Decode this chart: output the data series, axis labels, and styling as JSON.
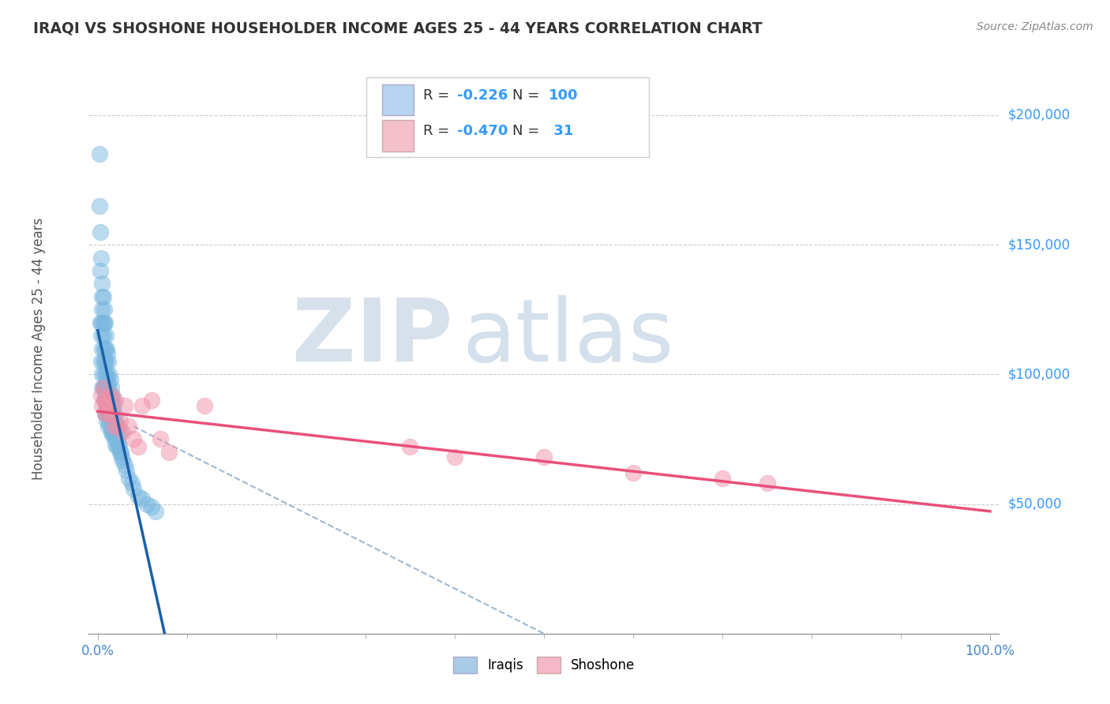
{
  "title": "IRAQI VS SHOSHONE HOUSEHOLDER INCOME AGES 25 - 44 YEARS CORRELATION CHART",
  "source_text": "Source: ZipAtlas.com",
  "ylabel": "Householder Income Ages 25 - 44 years",
  "ytick_labels": [
    "$50,000",
    "$100,000",
    "$150,000",
    "$200,000"
  ],
  "ytick_values": [
    50000,
    100000,
    150000,
    200000
  ],
  "ylim": [
    0,
    220000
  ],
  "xlim": [
    0.0,
    1.0
  ],
  "legend_bottom": [
    "Iraqis",
    "Shoshone"
  ],
  "legend_bottom_colors": [
    "#a8cce8",
    "#f4b8c8"
  ],
  "iraqis_color": "#7ab8e0",
  "shoshone_color": "#f090a8",
  "trendline_iraqis_color": "#1a5fa8",
  "trendline_shoshone_color": "#e8507a",
  "dashed_line_color": "#a0b8d0",
  "iraqis_x": [
    0.002,
    0.002,
    0.003,
    0.003,
    0.004,
    0.004,
    0.004,
    0.005,
    0.005,
    0.005,
    0.005,
    0.005,
    0.006,
    0.006,
    0.006,
    0.006,
    0.007,
    0.007,
    0.007,
    0.007,
    0.007,
    0.008,
    0.008,
    0.008,
    0.008,
    0.008,
    0.009,
    0.009,
    0.009,
    0.009,
    0.01,
    0.01,
    0.01,
    0.01,
    0.011,
    0.011,
    0.011,
    0.012,
    0.012,
    0.012,
    0.012,
    0.013,
    0.013,
    0.013,
    0.014,
    0.014,
    0.014,
    0.015,
    0.015,
    0.015,
    0.016,
    0.016,
    0.016,
    0.017,
    0.017,
    0.018,
    0.018,
    0.019,
    0.019,
    0.02,
    0.02,
    0.021,
    0.021,
    0.022,
    0.023,
    0.024,
    0.025,
    0.026,
    0.027,
    0.028,
    0.03,
    0.032,
    0.035,
    0.038,
    0.04,
    0.045,
    0.05,
    0.055,
    0.06,
    0.065,
    0.003,
    0.004,
    0.005,
    0.006,
    0.007,
    0.008,
    0.009,
    0.01,
    0.011,
    0.012,
    0.013,
    0.014,
    0.015,
    0.016,
    0.017,
    0.018,
    0.019,
    0.02,
    0.022,
    0.025
  ],
  "iraqis_y": [
    185000,
    165000,
    140000,
    120000,
    120000,
    115000,
    105000,
    130000,
    125000,
    110000,
    100000,
    95000,
    120000,
    115000,
    105000,
    95000,
    120000,
    110000,
    100000,
    95000,
    90000,
    110000,
    105000,
    95000,
    90000,
    85000,
    105000,
    100000,
    92000,
    85000,
    100000,
    95000,
    88000,
    82000,
    98000,
    92000,
    85000,
    95000,
    90000,
    85000,
    80000,
    92000,
    87000,
    82000,
    90000,
    85000,
    80000,
    88000,
    83000,
    78000,
    85000,
    82000,
    77000,
    83000,
    78000,
    82000,
    77000,
    80000,
    75000,
    78000,
    73000,
    76000,
    72000,
    75000,
    73000,
    72000,
    70000,
    70000,
    68000,
    67000,
    65000,
    63000,
    60000,
    58000,
    56000,
    53000,
    52000,
    50000,
    49000,
    47000,
    155000,
    145000,
    135000,
    130000,
    125000,
    120000,
    115000,
    110000,
    108000,
    105000,
    100000,
    98000,
    95000,
    92000,
    90000,
    88000,
    85000,
    83000,
    80000,
    78000
  ],
  "shoshone_x": [
    0.004,
    0.005,
    0.006,
    0.007,
    0.008,
    0.009,
    0.01,
    0.012,
    0.013,
    0.015,
    0.016,
    0.018,
    0.02,
    0.022,
    0.025,
    0.028,
    0.03,
    0.035,
    0.04,
    0.045,
    0.05,
    0.06,
    0.07,
    0.08,
    0.12,
    0.35,
    0.4,
    0.5,
    0.6,
    0.7,
    0.75
  ],
  "shoshone_y": [
    92000,
    88000,
    95000,
    90000,
    85000,
    88000,
    90000,
    85000,
    88000,
    92000,
    85000,
    80000,
    90000,
    80000,
    82000,
    78000,
    88000,
    80000,
    75000,
    72000,
    88000,
    90000,
    75000,
    70000,
    88000,
    72000,
    68000,
    68000,
    62000,
    60000,
    58000
  ],
  "r_iraqis": "-0.226",
  "n_iraqis": "100",
  "r_shoshone": "-0.470",
  "n_shoshone": "31"
}
